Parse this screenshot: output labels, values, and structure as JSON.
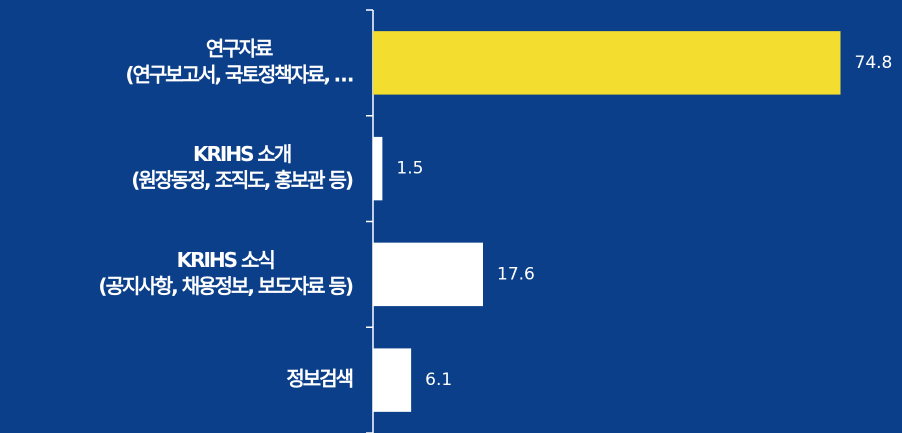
{
  "chart_data": {
    "type": "bar",
    "orientation": "horizontal",
    "categories": [
      [
        "연구자료",
        "(연구보고서, 국토정책자료, …"
      ],
      [
        "KRIHS 소개",
        "(원장동정, 조직도, 홍보관 등)"
      ],
      [
        "KRIHS 소식",
        "(공지사항, 채용정보, 보도자료 등)"
      ],
      [
        "정보검색"
      ]
    ],
    "values": [
      74.8,
      1.5,
      17.6,
      6.1
    ],
    "colors": [
      "#f3dd2f",
      "#ffffff",
      "#ffffff",
      "#ffffff"
    ],
    "xlim": [
      0,
      80
    ]
  }
}
